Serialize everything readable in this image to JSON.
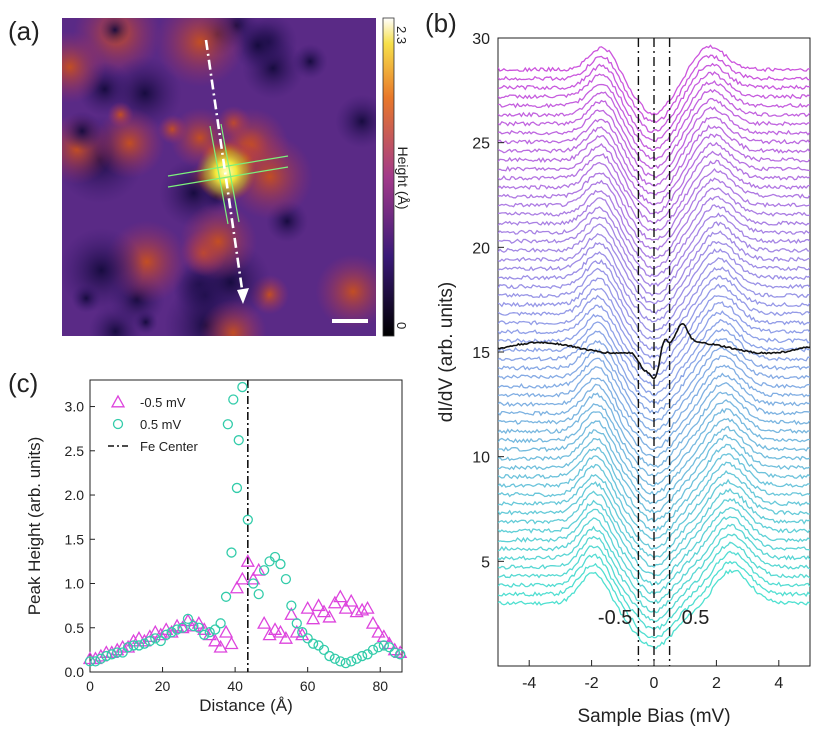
{
  "panels": {
    "a_label": "(a)",
    "b_label": "(b)",
    "c_label": "(c)"
  },
  "panel_a": {
    "colorbar": {
      "max": "2.3",
      "min": "0",
      "label": "Height (Å)"
    },
    "colors": {
      "dark": "#140a3c",
      "mid": "#6a2c8c",
      "orange": "#c8501e",
      "bright": "#fff27a"
    }
  },
  "chart_data": [
    {
      "type": "line",
      "panel": "b",
      "title": "",
      "xlabel": "Sample Bias (mV)",
      "ylabel": "dI/dV (arb. units)",
      "xlim": [
        -5,
        5
      ],
      "ylim": [
        0,
        30
      ],
      "xticks": [
        -4,
        -2,
        0,
        2,
        4
      ],
      "yticks": [
        5,
        10,
        15,
        20,
        25,
        30
      ],
      "series_count": 60,
      "series_offset_range": [
        2,
        27.5
      ],
      "color_gradient": [
        "#4fe0d0",
        "#8fa0e8",
        "#cc55dd"
      ],
      "highlight_series": {
        "color": "#111111",
        "offset": 15.2
      },
      "reference_lines": [
        {
          "x": -0.5,
          "style": "dash-dot",
          "label": "-0.5"
        },
        {
          "x": 0.0,
          "style": "dash-dot",
          "label": ""
        },
        {
          "x": 0.5,
          "style": "dash-dot",
          "label": "0.5"
        }
      ],
      "annotations": [
        "-0.5",
        "0.5"
      ]
    },
    {
      "type": "scatter",
      "panel": "c",
      "title": "",
      "xlabel": "Distance (Å)",
      "ylabel": "Peak Height (arb. units)",
      "xlim": [
        0,
        86
      ],
      "ylim": [
        0,
        3.3
      ],
      "xticks": [
        0,
        20,
        40,
        60,
        80
      ],
      "yticks": [
        0.0,
        0.5,
        1.0,
        1.5,
        2.0,
        2.5,
        3.0
      ],
      "legend_position": "top-left",
      "series": [
        {
          "name": "-0.5 mV",
          "marker": "triangle",
          "color": "#dd44dd",
          "x": [
            0,
            1.5,
            3,
            4.5,
            6,
            7.5,
            9,
            10.5,
            12,
            13.5,
            15,
            16.5,
            18,
            19.5,
            21,
            22.5,
            24,
            25.5,
            27,
            28.5,
            30,
            31.5,
            33,
            34.5,
            36,
            37.5,
            39,
            40.5,
            42,
            43.5,
            45,
            46.5,
            48,
            49.5,
            51,
            52.5,
            54,
            55.5,
            57,
            58.5,
            60,
            61.5,
            63,
            64.5,
            66,
            67.5,
            69,
            70.5,
            72,
            73.5,
            75,
            76.5,
            78,
            79.5,
            81,
            82.5,
            84,
            85.5
          ],
          "y": [
            0.15,
            0.15,
            0.18,
            0.22,
            0.22,
            0.25,
            0.28,
            0.28,
            0.35,
            0.38,
            0.35,
            0.4,
            0.45,
            0.42,
            0.48,
            0.45,
            0.52,
            0.5,
            0.58,
            0.52,
            0.55,
            0.48,
            0.42,
            0.35,
            0.28,
            0.45,
            0.32,
            0.95,
            1.05,
            1.25,
            1.05,
            1.15,
            0.55,
            0.42,
            0.48,
            0.45,
            0.38,
            0.65,
            0.45,
            0.42,
            0.72,
            0.6,
            0.75,
            0.68,
            0.62,
            0.78,
            0.85,
            0.72,
            0.8,
            0.68,
            0.7,
            0.72,
            0.55,
            0.45,
            0.4,
            0.32,
            0.25,
            0.22
          ]
        },
        {
          "name": "0.5 mV",
          "marker": "circle",
          "color": "#33ccaa",
          "x": [
            0,
            1.5,
            3,
            4.5,
            6,
            7.5,
            9,
            10.5,
            12,
            13.5,
            15,
            16.5,
            18,
            19.5,
            21,
            22.5,
            24,
            25.5,
            27,
            28.5,
            30,
            31.5,
            33,
            34.5,
            36,
            37.5,
            39,
            40.5,
            42,
            43.5,
            45,
            46.5,
            48,
            49.5,
            51,
            52.5,
            54,
            55.5,
            57,
            58.5,
            60,
            61.5,
            63,
            64.5,
            66,
            67.5,
            69,
            70.5,
            72,
            73.5,
            75,
            76.5,
            78,
            79.5,
            81,
            82.5,
            84,
            85.5
          ],
          "y": [
            0.12,
            0.12,
            0.15,
            0.18,
            0.2,
            0.22,
            0.22,
            0.28,
            0.3,
            0.3,
            0.32,
            0.35,
            0.38,
            0.35,
            0.42,
            0.45,
            0.48,
            0.5,
            0.6,
            0.52,
            0.5,
            0.42,
            0.45,
            0.48,
            0.55,
            0.85,
            1.35,
            2.08,
            3.22,
            1.72,
            1.0,
            0.88,
            1.15,
            1.25,
            1.3,
            1.22,
            1.05,
            0.75,
            0.55,
            0.45,
            0.38,
            0.32,
            0.3,
            0.25,
            0.18,
            0.15,
            0.12,
            0.1,
            0.12,
            0.15,
            0.18,
            0.2,
            0.25,
            0.28,
            0.3,
            0.28,
            0.22,
            0.2
          ]
        }
      ],
      "extra_points": {
        "series": "0.5 mV",
        "x": [
          38,
          39.5,
          41
        ],
        "y": [
          2.8,
          3.08,
          2.62
        ]
      },
      "reference_lines": [
        {
          "x": 43.5,
          "style": "dash-dot",
          "label": "Fe Center"
        }
      ]
    }
  ]
}
